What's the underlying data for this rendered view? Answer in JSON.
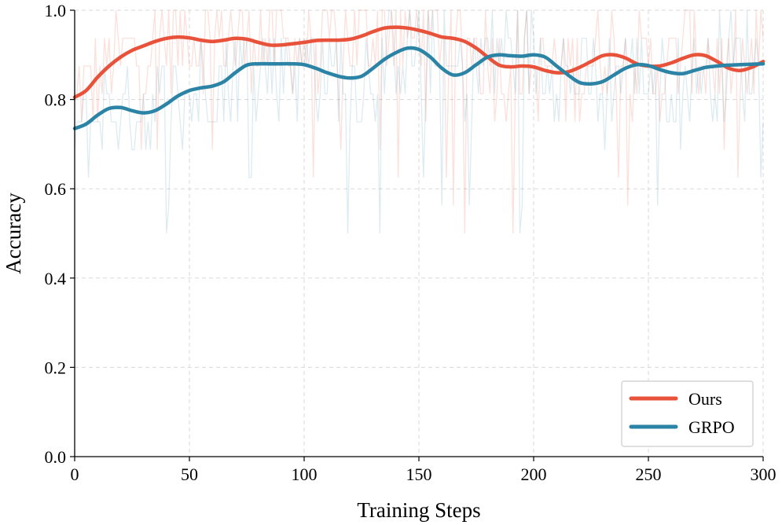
{
  "chart_data": {
    "type": "line",
    "title": "",
    "xlabel": "Training Steps",
    "ylabel": "Accuracy",
    "xlim": [
      0,
      300
    ],
    "ylim": [
      0.0,
      1.0
    ],
    "xticks": [
      0,
      50,
      100,
      150,
      200,
      250,
      300
    ],
    "yticks": [
      0.0,
      0.2,
      0.4,
      0.6,
      0.8,
      1.0
    ],
    "xtick_labels": [
      "0",
      "50",
      "100",
      "150",
      "200",
      "250",
      "300"
    ],
    "ytick_labels": [
      "0.0",
      "0.2",
      "0.4",
      "0.6",
      "0.8",
      "1.0"
    ],
    "grid": true,
    "legend_position": "bottom-right",
    "series": [
      {
        "name": "Ours",
        "color": "#e8523a",
        "x": [
          0,
          5,
          10,
          15,
          20,
          25,
          30,
          35,
          40,
          45,
          50,
          55,
          60,
          65,
          70,
          75,
          80,
          85,
          90,
          95,
          100,
          105,
          110,
          115,
          120,
          125,
          130,
          135,
          140,
          145,
          150,
          155,
          160,
          165,
          170,
          175,
          180,
          185,
          190,
          195,
          200,
          205,
          210,
          215,
          220,
          225,
          230,
          235,
          240,
          245,
          250,
          255,
          260,
          265,
          270,
          275,
          280,
          285,
          290,
          295,
          300
        ],
        "values": [
          0.805,
          0.82,
          0.85,
          0.875,
          0.895,
          0.91,
          0.92,
          0.93,
          0.937,
          0.94,
          0.938,
          0.933,
          0.93,
          0.933,
          0.937,
          0.935,
          0.928,
          0.922,
          0.922,
          0.925,
          0.928,
          0.932,
          0.933,
          0.933,
          0.935,
          0.942,
          0.952,
          0.96,
          0.962,
          0.96,
          0.955,
          0.948,
          0.94,
          0.937,
          0.93,
          0.915,
          0.895,
          0.877,
          0.873,
          0.875,
          0.873,
          0.865,
          0.86,
          0.862,
          0.872,
          0.885,
          0.898,
          0.9,
          0.893,
          0.88,
          0.875,
          0.875,
          0.882,
          0.892,
          0.9,
          0.898,
          0.885,
          0.87,
          0.865,
          0.872,
          0.885
        ]
      },
      {
        "name": "GRPO",
        "color": "#2b83a6",
        "x": [
          0,
          5,
          10,
          15,
          20,
          25,
          30,
          35,
          40,
          45,
          50,
          55,
          60,
          65,
          70,
          75,
          80,
          85,
          90,
          95,
          100,
          105,
          110,
          115,
          120,
          125,
          130,
          135,
          140,
          145,
          150,
          155,
          160,
          165,
          170,
          175,
          180,
          185,
          190,
          195,
          200,
          205,
          210,
          215,
          220,
          225,
          230,
          235,
          240,
          245,
          250,
          255,
          260,
          265,
          270,
          275,
          280,
          285,
          290,
          295,
          300
        ],
        "values": [
          0.735,
          0.745,
          0.765,
          0.78,
          0.782,
          0.775,
          0.77,
          0.775,
          0.79,
          0.808,
          0.82,
          0.826,
          0.83,
          0.84,
          0.86,
          0.877,
          0.88,
          0.88,
          0.88,
          0.88,
          0.878,
          0.87,
          0.86,
          0.852,
          0.848,
          0.852,
          0.87,
          0.89,
          0.905,
          0.915,
          0.912,
          0.895,
          0.87,
          0.855,
          0.86,
          0.878,
          0.895,
          0.9,
          0.898,
          0.897,
          0.9,
          0.895,
          0.875,
          0.855,
          0.838,
          0.835,
          0.84,
          0.855,
          0.87,
          0.878,
          0.876,
          0.867,
          0.86,
          0.858,
          0.865,
          0.872,
          0.875,
          0.877,
          0.878,
          0.879,
          0.88
        ]
      }
    ]
  }
}
